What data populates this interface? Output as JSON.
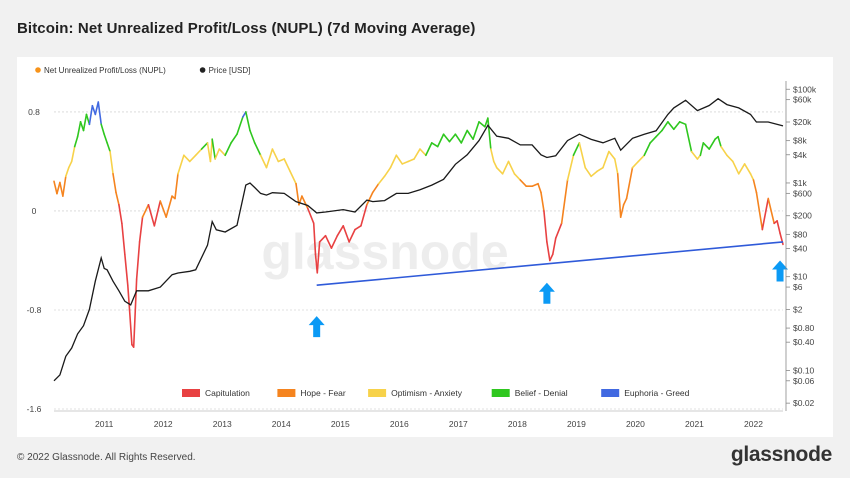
{
  "title": "Bitcoin: Net Unrealized Profit/Loss (NUPL) (7d Moving Average)",
  "footer": "© 2022 Glassnode. All Rights Reserved.",
  "brand": "glassnode",
  "watermark": "glassnode",
  "chart_data": {
    "type": "line",
    "title": "Bitcoin: Net Unrealized Profit/Loss (NUPL) (7d Moving Average)",
    "legend_top": [
      {
        "name": "Net Unrealized Profit/Loss (NUPL)",
        "color": "#f7931a"
      },
      {
        "name": "Price [USD]",
        "color": "#222222"
      }
    ],
    "left_ticks": [
      "0.8",
      "0",
      "-0.8",
      "-1.6"
    ],
    "left_tick_values": [
      0.8,
      0,
      -0.8,
      -1.6
    ],
    "ylim_left": [
      -1.6,
      1.05
    ],
    "right_ticks": [
      "$100k",
      "$60k",
      "$20k",
      "$8k",
      "$4k",
      "$1k",
      "$600",
      "$200",
      "$80",
      "$40",
      "$10",
      "$6",
      "$2",
      "$0.80",
      "$0.40",
      "$0.10",
      "$0.06",
      "$0.02"
    ],
    "right_tick_values": [
      100000,
      60000,
      20000,
      8000,
      4000,
      1000,
      600,
      200,
      80,
      40,
      10,
      6,
      2,
      0.8,
      0.4,
      0.1,
      0.06,
      0.02
    ],
    "right_scale": "log",
    "ylim_right": [
      0.015,
      150000
    ],
    "x_ticks": [
      "2011",
      "2012",
      "2013",
      "2014",
      "2015",
      "2016",
      "2017",
      "2018",
      "2019",
      "2020",
      "2021",
      "2022"
    ],
    "xlim": [
      2010.6,
      2022.95
    ],
    "grid": "horizontal",
    "zone_colors": {
      "capitulation": "#e84142",
      "hope_fear": "#f5841f",
      "optimism_anxiety": "#f7d24a",
      "belief_denial": "#2fc71f",
      "euphoria_greed": "#4169e1"
    },
    "zone_legend": [
      {
        "name": "Capitulation",
        "color": "#e84142"
      },
      {
        "name": "Hope - Fear",
        "color": "#f5841f"
      },
      {
        "name": "Optimism - Anxiety",
        "color": "#f7d24a"
      },
      {
        "name": "Belief - Denial",
        "color": "#2fc71f"
      },
      {
        "name": "Euphoria - Greed",
        "color": "#4169e1"
      }
    ],
    "nupl_series": {
      "name": "Net Unrealized Profit/Loss (NUPL)",
      "x": [
        2010.6,
        2010.65,
        2010.7,
        2010.75,
        2010.8,
        2010.85,
        2010.9,
        2010.95,
        2011.0,
        2011.05,
        2011.1,
        2011.15,
        2011.2,
        2011.25,
        2011.3,
        2011.35,
        2011.4,
        2011.45,
        2011.5,
        2011.55,
        2011.6,
        2011.65,
        2011.7,
        2011.75,
        2011.8,
        2011.85,
        2011.88,
        2011.92,
        2011.95,
        2012.0,
        2012.05,
        2012.1,
        2012.2,
        2012.3,
        2012.4,
        2012.5,
        2012.6,
        2012.65,
        2012.7,
        2012.8,
        2012.9,
        2013.0,
        2013.1,
        2013.2,
        2013.25,
        2013.28,
        2013.33,
        2013.4,
        2013.5,
        2013.6,
        2013.7,
        2013.8,
        2013.85,
        2013.92,
        2014.0,
        2014.1,
        2014.2,
        2014.3,
        2014.4,
        2014.5,
        2014.6,
        2014.7,
        2014.75,
        2014.8,
        2014.9,
        2015.0,
        2015.03,
        2015.06,
        2015.1,
        2015.2,
        2015.3,
        2015.4,
        2015.5,
        2015.6,
        2015.7,
        2015.8,
        2015.9,
        2016.0,
        2016.1,
        2016.2,
        2016.3,
        2016.4,
        2016.5,
        2016.6,
        2016.7,
        2016.8,
        2016.9,
        2017.0,
        2017.1,
        2017.2,
        2017.3,
        2017.4,
        2017.5,
        2017.6,
        2017.7,
        2017.8,
        2017.9,
        2017.95,
        2018.0,
        2018.05,
        2018.1,
        2018.2,
        2018.3,
        2018.4,
        2018.5,
        2018.6,
        2018.7,
        2018.8,
        2018.85,
        2018.9,
        2018.95,
        2019.0,
        2019.05,
        2019.1,
        2019.2,
        2019.3,
        2019.4,
        2019.5,
        2019.6,
        2019.7,
        2019.8,
        2019.9,
        2020.0,
        2020.1,
        2020.15,
        2020.2,
        2020.25,
        2020.3,
        2020.4,
        2020.5,
        2020.6,
        2020.7,
        2020.8,
        2020.9,
        2021.0,
        2021.1,
        2021.2,
        2021.3,
        2021.4,
        2021.5,
        2021.55,
        2021.6,
        2021.7,
        2021.8,
        2021.85,
        2021.9,
        2022.0,
        2022.1,
        2022.2,
        2022.3,
        2022.4,
        2022.45,
        2022.5,
        2022.6,
        2022.7,
        2022.8,
        2022.85,
        2022.9,
        2022.95
      ],
      "values": [
        0.24,
        0.14,
        0.23,
        0.12,
        0.28,
        0.35,
        0.4,
        0.52,
        0.6,
        0.72,
        0.65,
        0.78,
        0.7,
        0.85,
        0.78,
        0.88,
        0.7,
        0.62,
        0.55,
        0.48,
        0.3,
        0.15,
        0.05,
        -0.1,
        -0.35,
        -0.6,
        -0.8,
        -1.08,
        -1.1,
        -0.55,
        -0.25,
        -0.05,
        0.05,
        -0.12,
        0.08,
        -0.05,
        0.12,
        0.1,
        0.3,
        0.45,
        0.4,
        0.45,
        0.5,
        0.55,
        0.4,
        0.58,
        0.42,
        0.5,
        0.45,
        0.55,
        0.62,
        0.76,
        0.8,
        0.65,
        0.55,
        0.45,
        0.35,
        0.5,
        0.4,
        0.42,
        0.32,
        0.22,
        0.05,
        0.12,
        0.02,
        -0.1,
        -0.35,
        -0.5,
        -0.25,
        -0.2,
        -0.3,
        -0.2,
        -0.12,
        -0.25,
        -0.15,
        -0.12,
        0.05,
        0.15,
        0.22,
        0.28,
        0.35,
        0.45,
        0.38,
        0.4,
        0.42,
        0.5,
        0.45,
        0.55,
        0.52,
        0.62,
        0.56,
        0.62,
        0.55,
        0.65,
        0.58,
        0.72,
        0.68,
        0.75,
        0.5,
        0.4,
        0.35,
        0.3,
        0.4,
        0.3,
        0.25,
        0.2,
        0.2,
        0.22,
        0.15,
        0.0,
        -0.25,
        -0.4,
        -0.35,
        -0.22,
        -0.1,
        0.25,
        0.45,
        0.55,
        0.35,
        0.28,
        0.32,
        0.35,
        0.48,
        0.42,
        0.3,
        -0.05,
        0.05,
        0.1,
        0.35,
        0.4,
        0.45,
        0.55,
        0.6,
        0.65,
        0.72,
        0.66,
        0.72,
        0.7,
        0.48,
        0.42,
        0.45,
        0.55,
        0.5,
        0.58,
        0.6,
        0.52,
        0.45,
        0.4,
        0.3,
        0.38,
        0.3,
        0.25,
        0.15,
        -0.15,
        0.1,
        -0.1,
        -0.08,
        -0.18,
        -0.27
      ]
    },
    "price_series": {
      "name": "Price [USD]",
      "x": [
        2010.6,
        2010.7,
        2010.8,
        2010.9,
        2011.0,
        2011.1,
        2011.2,
        2011.3,
        2011.4,
        2011.45,
        2011.5,
        2011.6,
        2011.7,
        2011.8,
        2011.9,
        2012.0,
        2012.2,
        2012.4,
        2012.6,
        2012.7,
        2012.9,
        2013.0,
        2013.2,
        2013.28,
        2013.35,
        2013.5,
        2013.7,
        2013.85,
        2013.92,
        2014.0,
        2014.1,
        2014.2,
        2014.3,
        2014.5,
        2014.7,
        2014.9,
        2015.05,
        2015.2,
        2015.5,
        2015.7,
        2015.9,
        2016.0,
        2016.2,
        2016.4,
        2016.6,
        2016.8,
        2017.0,
        2017.2,
        2017.4,
        2017.6,
        2017.8,
        2017.95,
        2018.1,
        2018.3,
        2018.5,
        2018.7,
        2018.85,
        2018.95,
        2019.1,
        2019.3,
        2019.5,
        2019.7,
        2019.9,
        2020.1,
        2020.2,
        2020.4,
        2020.6,
        2020.8,
        2021.0,
        2021.1,
        2021.3,
        2021.5,
        2021.7,
        2021.85,
        2022.0,
        2022.2,
        2022.4,
        2022.5,
        2022.7,
        2022.95
      ],
      "values": [
        0.06,
        0.08,
        0.2,
        0.3,
        0.6,
        0.9,
        2,
        8,
        25,
        15,
        14,
        8,
        5,
        3,
        2.5,
        5,
        5,
        6,
        11,
        12,
        13,
        14,
        47,
        150,
        100,
        90,
        125,
        900,
        1000,
        800,
        600,
        550,
        620,
        600,
        400,
        330,
        230,
        240,
        270,
        240,
        430,
        400,
        420,
        600,
        600,
        720,
        900,
        1200,
        2500,
        4000,
        8000,
        17000,
        10000,
        9000,
        6500,
        6500,
        4000,
        3500,
        3800,
        8000,
        11000,
        8500,
        7200,
        9000,
        5000,
        9000,
        11000,
        13000,
        29000,
        40000,
        58000,
        35000,
        45000,
        63000,
        47000,
        40000,
        29000,
        20000,
        20000,
        16500
      ]
    },
    "trendline": {
      "x": [
        2015.05,
        2022.95
      ],
      "values": [
        -0.6,
        -0.25
      ],
      "color": "#2f5ad9"
    },
    "arrows": [
      {
        "x": 2015.05,
        "nupl": -0.85
      },
      {
        "x": 2018.95,
        "nupl": -0.58
      },
      {
        "x": 2022.9,
        "nupl": -0.4
      }
    ]
  }
}
